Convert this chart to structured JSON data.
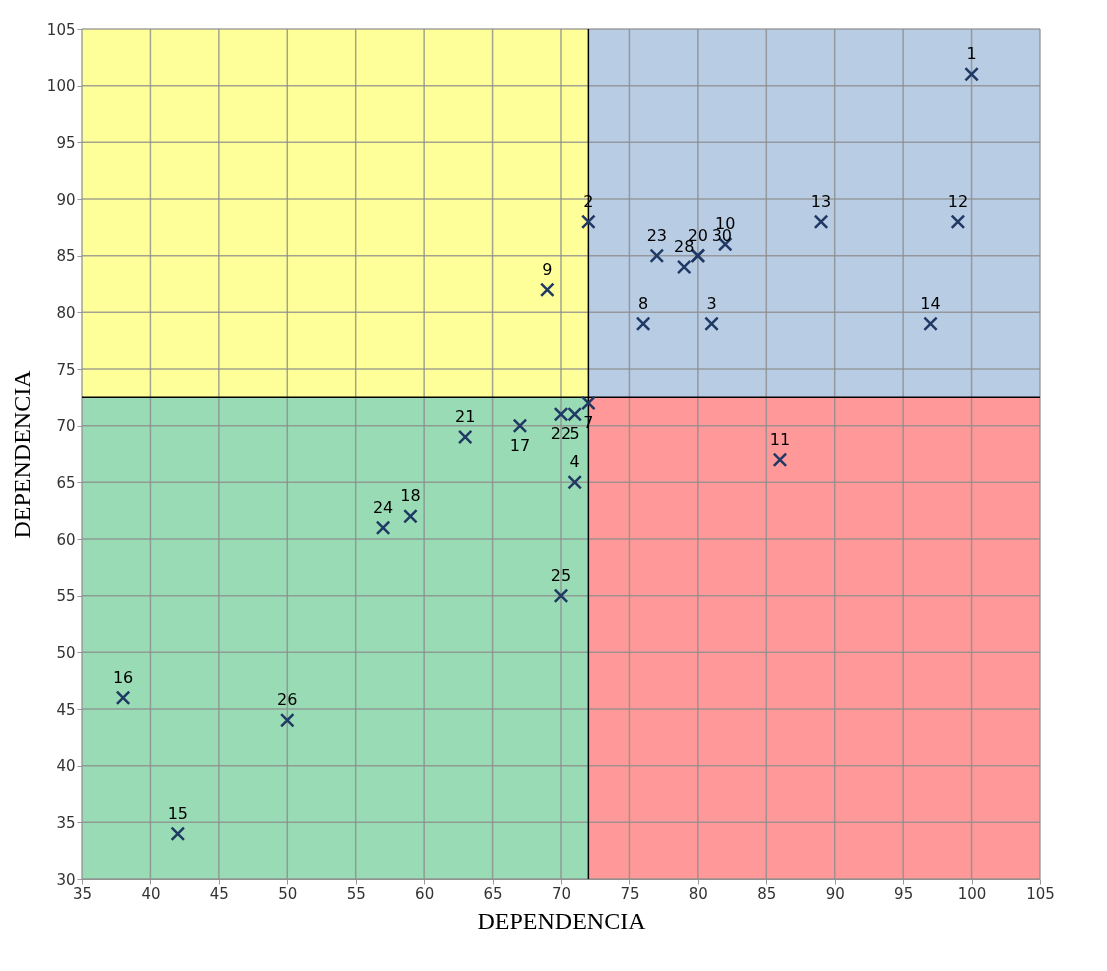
{
  "chart_data": {
    "type": "scatter",
    "xlabel": "DEPENDENCIA",
    "ylabel": "DEPENDENCIA",
    "x": [
      100,
      72,
      81,
      71,
      71,
      72,
      76,
      69,
      82,
      86,
      99,
      89,
      97,
      42,
      38,
      67,
      59,
      80,
      63,
      70,
      77,
      57,
      70,
      50,
      79,
      80
    ],
    "values": [
      101,
      88,
      79,
      65,
      71,
      72,
      79,
      82,
      86,
      67,
      88,
      88,
      79,
      34,
      46,
      70,
      62,
      85,
      69,
      71,
      85,
      61,
      55,
      44,
      84,
      85
    ],
    "color": "#1f3864",
    "marker": "cross",
    "xlim": [
      35,
      105
    ],
    "xticks": [
      35,
      40,
      45,
      50,
      55,
      60,
      65,
      70,
      75,
      80,
      85,
      90,
      95,
      100,
      105
    ],
    "ylim": [
      30,
      105
    ],
    "yticks": [
      30,
      35,
      40,
      45,
      50,
      55,
      60,
      65,
      70,
      75,
      80,
      85,
      90,
      95,
      100,
      105
    ],
    "grid": true,
    "ref_lines": [
      {
        "axis": "x",
        "value": 72,
        "color": "#000000"
      },
      {
        "axis": "y",
        "value": 72.5,
        "color": "#000000"
      }
    ],
    "bands": [
      {
        "axis": "x",
        "from": 35,
        "to": 72,
        "color": "#ffff99"
      },
      {
        "axis": "x",
        "from": 72,
        "to": 105,
        "color": "#b8cce4"
      },
      {
        "axis": "x",
        "from": 35,
        "to": 72,
        "color": "#99dbb4"
      },
      {
        "axis": "x",
        "from": 72,
        "to": 105,
        "color": "#ff9999"
      }
    ],
    "annotations": [
      {
        "text": "1",
        "x": 100,
        "y": 101
      },
      {
        "text": "2",
        "x": 72,
        "y": 88
      },
      {
        "text": "3",
        "x": 81,
        "y": 79
      },
      {
        "text": "4",
        "x": 71,
        "y": 65
      },
      {
        "text": "5",
        "x": 71,
        "y": 71
      },
      {
        "text": "7",
        "x": 72,
        "y": 72
      },
      {
        "text": "8",
        "x": 76,
        "y": 79
      },
      {
        "text": "9",
        "x": 69,
        "y": 82
      },
      {
        "text": "10",
        "x": 82,
        "y": 86
      },
      {
        "text": "11",
        "x": 86,
        "y": 67
      },
      {
        "text": "12",
        "x": 99,
        "y": 88
      },
      {
        "text": "13",
        "x": 89,
        "y": 88
      },
      {
        "text": "14",
        "x": 97,
        "y": 79
      },
      {
        "text": "15",
        "x": 42,
        "y": 34
      },
      {
        "text": "16",
        "x": 38,
        "y": 46
      },
      {
        "text": "17",
        "x": 67,
        "y": 70
      },
      {
        "text": "18",
        "x": 59,
        "y": 62
      },
      {
        "text": "20",
        "x": 80,
        "y": 85
      },
      {
        "text": "21",
        "x": 63,
        "y": 69
      },
      {
        "text": "22",
        "x": 70,
        "y": 71
      },
      {
        "text": "23",
        "x": 77,
        "y": 85
      },
      {
        "text": "24",
        "x": 57,
        "y": 61
      },
      {
        "text": "25",
        "x": 70,
        "y": 55
      },
      {
        "text": "26",
        "x": 50,
        "y": 44
      },
      {
        "text": "28",
        "x": 79,
        "y": 84
      },
      {
        "text": "30",
        "x": 80,
        "y": 85
      }
    ]
  }
}
